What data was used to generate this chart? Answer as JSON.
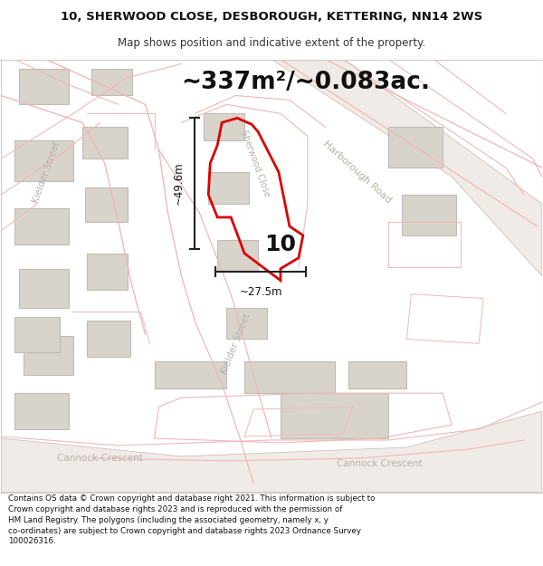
{
  "title_line1": "10, SHERWOOD CLOSE, DESBOROUGH, KETTERING, NN14 2WS",
  "title_line2": "Map shows position and indicative extent of the property.",
  "area_label": "~337m²/~0.083ac.",
  "property_number": "10",
  "dim_width": "~27.5m",
  "dim_height": "~49.6m",
  "footer_text": "Contains OS data © Crown copyright and database right 2021. This information is subject to\nCrown copyright and database rights 2023 and is reproduced with the permission of\nHM Land Registry. The polygons (including the associated geometry, namely x, y\nco-ordinates) are subject to Crown copyright and database rights 2023 Ordnance Survey\n100026316.",
  "map_bg": "#ffffff",
  "building_fill": "#d8d4cc",
  "building_edge": "#c0bcb4",
  "road_outline_color": "#f0b8b8",
  "plot_edge": "#dd0000",
  "text_road_color": "#c8bcbc",
  "dim_line_color": "#222222"
}
